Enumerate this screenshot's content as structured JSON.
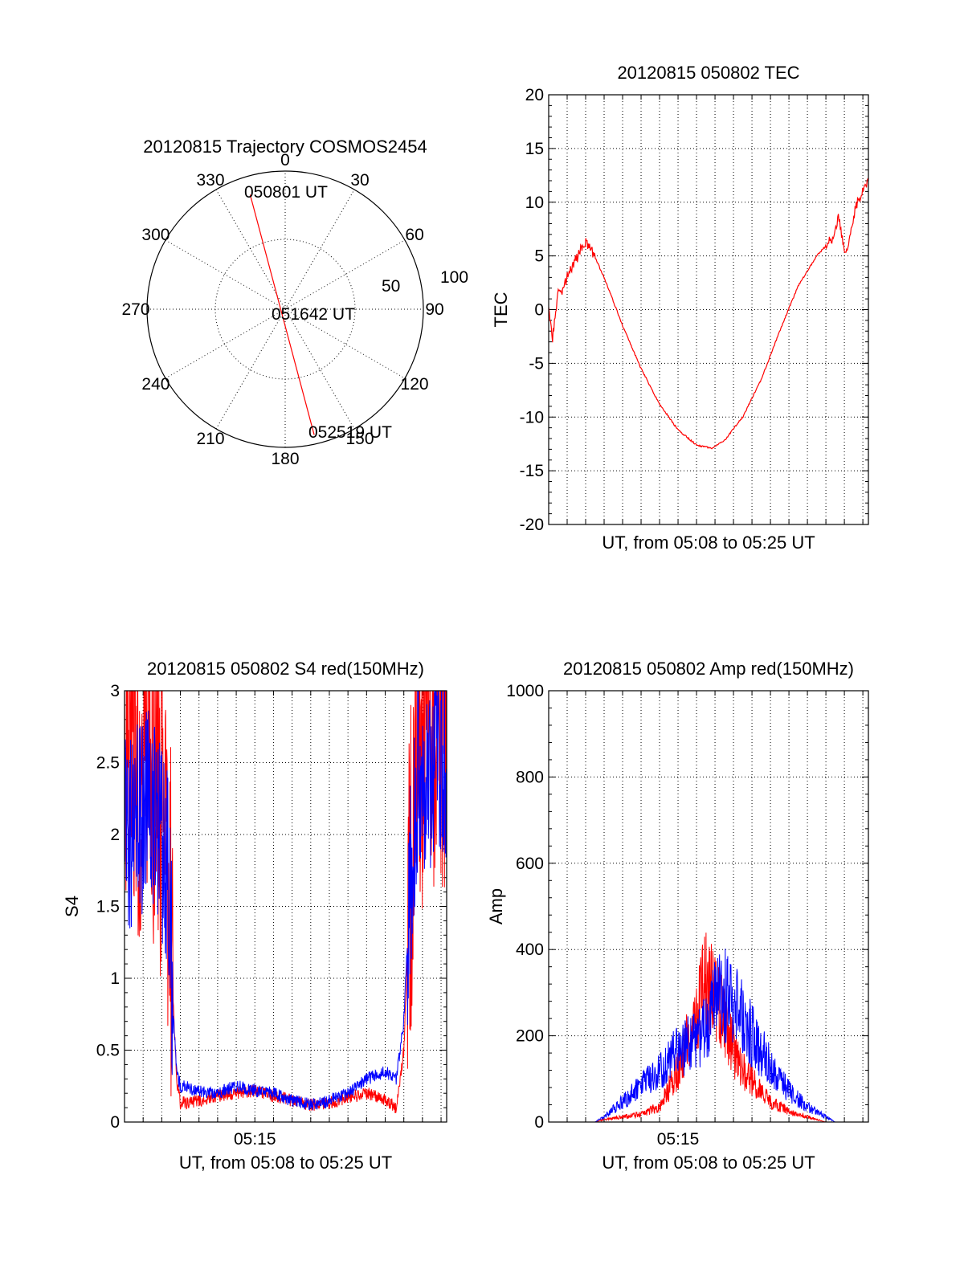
{
  "chart_data": [
    {
      "id": "trajectory",
      "type": "polar",
      "title": "20120815 Trajectory COSMOS2454",
      "angle_labels": [
        "0",
        "30",
        "60",
        "90",
        "120",
        "150",
        "180",
        "210",
        "240",
        "270",
        "300",
        "330"
      ],
      "radial_labels": [
        "50",
        "100"
      ],
      "path": {
        "start": {
          "az": 343,
          "el": 12,
          "label": "050801 UT"
        },
        "mid": {
          "az": 180,
          "el": 88,
          "label": "051642 UT"
        },
        "end": {
          "az": 167,
          "el": 6,
          "label": "052519 UT"
        }
      },
      "color": "#ff0000"
    },
    {
      "id": "tec",
      "type": "line",
      "title": "20120815 050802 TEC",
      "xlabel": "UT, from 05:08 to 05:25 UT",
      "ylabel": "TEC",
      "xlim": [
        0,
        17.3
      ],
      "ylim": [
        -20,
        20
      ],
      "yticks": [
        "-20",
        "-15",
        "-10",
        "-5",
        "0",
        "5",
        "10",
        "15",
        "20"
      ],
      "series": [
        {
          "color": "#ff0000",
          "x": [
            0,
            0.2,
            0.5,
            0.8,
            1.0,
            1.3,
            1.6,
            1.9,
            2.2,
            3,
            4,
            5,
            6,
            7,
            8,
            8.8,
            9.5,
            10.5,
            11.5,
            12.5,
            13.5,
            14.5,
            15.3,
            15.7,
            16.0,
            16.3,
            16.6,
            17.0,
            17.3
          ],
          "y": [
            0,
            -2.7,
            1.5,
            2.0,
            3.0,
            4.2,
            5.0,
            6.3,
            6.0,
            3.0,
            -1.5,
            -5.5,
            -8.8,
            -11.2,
            -12.6,
            -12.9,
            -12.2,
            -10.0,
            -6.5,
            -2.0,
            2.2,
            5.0,
            6.5,
            8.6,
            5.3,
            6.5,
            9.5,
            11.3,
            11.8
          ]
        }
      ]
    },
    {
      "id": "s4",
      "type": "line",
      "title": "20120815 050802 S4 red(150MHz)",
      "xlabel": "UT, from 05:08 to 05:25 UT",
      "ylabel": "S4",
      "xtick_label": "05:15",
      "xlim": [
        0,
        17.3
      ],
      "ylim": [
        0,
        3
      ],
      "yticks": [
        "0",
        "0.5",
        "1",
        "1.5",
        "2",
        "2.5",
        "3"
      ],
      "series": [
        {
          "color": "#ff0000",
          "x": [
            0,
            1.5,
            2.4,
            2.6,
            2.8,
            3.0,
            4,
            5,
            6,
            7,
            8,
            9,
            10,
            11,
            12,
            13,
            14,
            14.6,
            15.0,
            15.3,
            15.7,
            17.3
          ],
          "y": [
            2.5,
            2.4,
            1.8,
            0.9,
            0.3,
            0.13,
            0.15,
            0.18,
            0.2,
            0.22,
            0.18,
            0.15,
            0.12,
            0.13,
            0.17,
            0.2,
            0.16,
            0.1,
            0.5,
            1.5,
            2.6,
            2.7
          ]
        },
        {
          "color": "#0000ff",
          "x": [
            0,
            1.5,
            2.4,
            2.6,
            2.8,
            3.0,
            4,
            5,
            6,
            7,
            8,
            9,
            10,
            11,
            12,
            13,
            14,
            14.6,
            15.0,
            15.3,
            15.7,
            17.3
          ],
          "y": [
            2.0,
            2.2,
            1.7,
            0.8,
            0.35,
            0.25,
            0.22,
            0.2,
            0.25,
            0.22,
            0.2,
            0.15,
            0.12,
            0.15,
            0.2,
            0.3,
            0.35,
            0.3,
            0.7,
            1.6,
            2.4,
            2.5
          ]
        }
      ]
    },
    {
      "id": "amp",
      "type": "line",
      "title": "20120815 050802 Amp red(150MHz)",
      "xlabel": "UT, from 05:08 to 05:25 UT",
      "ylabel": "Amp",
      "xtick_label": "05:15",
      "xlim": [
        0,
        17.3
      ],
      "ylim": [
        0,
        1000
      ],
      "yticks": [
        "0",
        "200",
        "400",
        "600",
        "800",
        "1000"
      ],
      "series": [
        {
          "color": "#ff0000",
          "x": [
            0,
            2.5,
            3.0,
            4,
            5,
            6,
            7,
            8,
            8.5,
            9,
            9.5,
            10,
            10.5,
            11,
            12,
            13,
            14,
            15,
            15.5,
            17.3
          ],
          "y": [
            0,
            0,
            5,
            10,
            15,
            30,
            100,
            220,
            270,
            260,
            200,
            140,
            100,
            80,
            40,
            20,
            10,
            0,
            0,
            0
          ]
        },
        {
          "color": "#0000ff",
          "x": [
            0,
            2.5,
            3.0,
            4,
            5,
            6,
            7,
            8,
            8.5,
            9,
            9.5,
            10,
            10.5,
            11,
            12,
            13,
            14,
            15,
            15.5,
            17.3
          ],
          "y": [
            0,
            0,
            10,
            40,
            70,
            100,
            140,
            160,
            180,
            240,
            250,
            230,
            200,
            170,
            110,
            60,
            30,
            10,
            0,
            0
          ]
        }
      ]
    }
  ]
}
